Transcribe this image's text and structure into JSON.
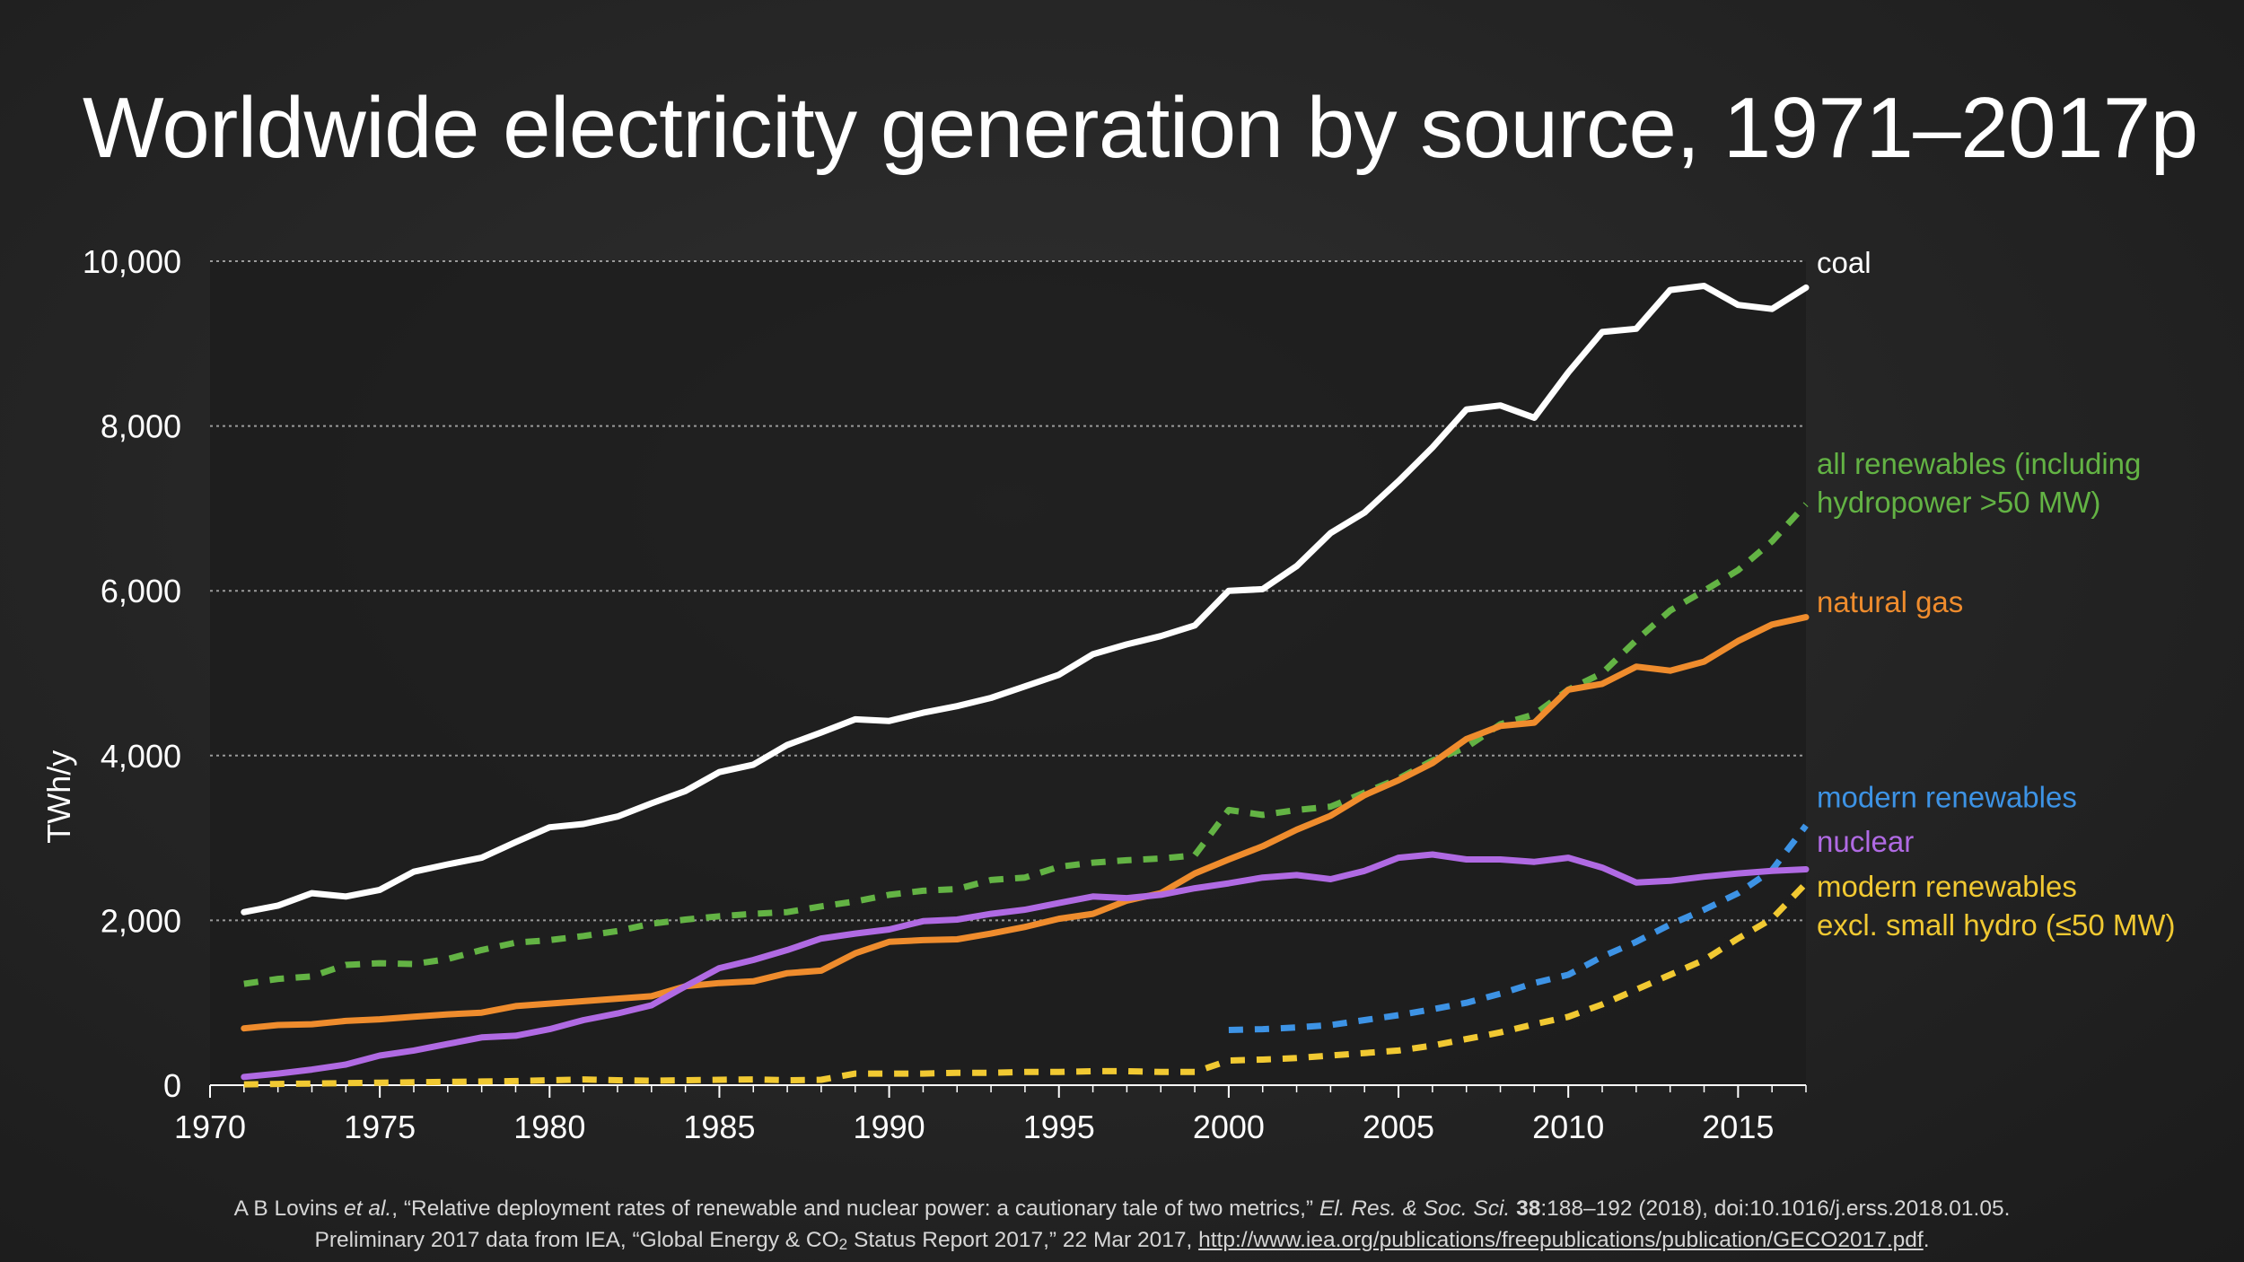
{
  "title": "Worldwide electricity generation by source, 1971–2017p",
  "colors": {
    "coal": "#ffffff",
    "all_renewables": "#63b344",
    "natural_gas": "#ef8c2d",
    "modern_renewables": "#3d93e5",
    "nuclear": "#b06ae3",
    "modern_excl_small_hydro": "#f1c932"
  },
  "chart_data": {
    "type": "line",
    "title": "Worldwide electricity generation by source, 1971–2017p",
    "xlabel": "",
    "ylabel": "TWh/y",
    "xlim": [
      1970,
      2017
    ],
    "ylim": [
      0,
      10000
    ],
    "grid": true,
    "x_ticks": [
      1970,
      1975,
      1980,
      1985,
      1990,
      1995,
      2000,
      2005,
      2010,
      2015
    ],
    "x_tick_labels": [
      "1970",
      "1975",
      "1980",
      "1985",
      "1990",
      "1995",
      "2000",
      "2005",
      "2010",
      "2015"
    ],
    "y_ticks": [
      0,
      2000,
      4000,
      6000,
      8000,
      10000
    ],
    "y_tick_labels": [
      "0",
      "2,000",
      "4,000",
      "6,000",
      "8,000",
      "10,000"
    ],
    "series": [
      {
        "key": "coal",
        "name": "coal",
        "dashed": false,
        "color": "#ffffff",
        "label_lines": [
          "coal"
        ],
        "label_y": 9860,
        "x": [
          1971,
          1972,
          1973,
          1974,
          1975,
          1976,
          1977,
          1978,
          1979,
          1980,
          1981,
          1982,
          1983,
          1984,
          1985,
          1986,
          1987,
          1988,
          1989,
          1990,
          1991,
          1992,
          1993,
          1994,
          1995,
          1996,
          1997,
          1998,
          1999,
          2000,
          2001,
          2002,
          2003,
          2004,
          2005,
          2006,
          2007,
          2008,
          2009,
          2010,
          2011,
          2012,
          2013,
          2014,
          2015,
          2016,
          2017
        ],
        "values": [
          2100,
          2180,
          2330,
          2290,
          2370,
          2590,
          2680,
          2760,
          2950,
          3130,
          3170,
          3260,
          3420,
          3570,
          3800,
          3890,
          4130,
          4280,
          4440,
          4420,
          4520,
          4600,
          4700,
          4840,
          4980,
          5230,
          5350,
          5450,
          5580,
          6000,
          6020,
          6300,
          6700,
          6950,
          7330,
          7740,
          8200,
          8250,
          8100,
          8650,
          9140,
          9180,
          9650,
          9700,
          9470,
          9420,
          9680
        ]
      },
      {
        "key": "all_renewables",
        "name": "all renewables (including hydropower >50 MW)",
        "dashed": true,
        "color": "#63b344",
        "label_lines": [
          "all renewables (including",
          "hydropower >50 MW)"
        ],
        "label_y": 7420,
        "x": [
          1971,
          1972,
          1973,
          1974,
          1975,
          1976,
          1977,
          1978,
          1979,
          1980,
          1981,
          1982,
          1983,
          1984,
          1985,
          1986,
          1987,
          1988,
          1989,
          1990,
          1991,
          1992,
          1993,
          1994,
          1995,
          1996,
          1997,
          1998,
          1999,
          2000,
          2001,
          2002,
          2003,
          2004,
          2005,
          2006,
          2007,
          2008,
          2009,
          2010,
          2011,
          2012,
          2013,
          2014,
          2015,
          2016,
          2017
        ],
        "values": [
          1230,
          1290,
          1320,
          1460,
          1480,
          1470,
          1530,
          1640,
          1730,
          1760,
          1810,
          1870,
          1960,
          2010,
          2050,
          2080,
          2100,
          2170,
          2230,
          2310,
          2360,
          2380,
          2490,
          2520,
          2650,
          2700,
          2730,
          2750,
          2790,
          3340,
          3280,
          3340,
          3380,
          3550,
          3720,
          3940,
          4100,
          4380,
          4500,
          4800,
          5000,
          5400,
          5760,
          6000,
          6250,
          6600,
          7050
        ]
      },
      {
        "key": "natural_gas",
        "name": "natural gas",
        "dashed": false,
        "color": "#ef8c2d",
        "label_lines": [
          "natural gas"
        ],
        "label_y": 5740,
        "x": [
          1971,
          1972,
          1973,
          1974,
          1975,
          1976,
          1977,
          1978,
          1979,
          1980,
          1981,
          1982,
          1983,
          1984,
          1985,
          1986,
          1987,
          1988,
          1989,
          1990,
          1991,
          1992,
          1993,
          1994,
          1995,
          1996,
          1997,
          1998,
          1999,
          2000,
          2001,
          2002,
          2003,
          2004,
          2005,
          2006,
          2007,
          2008,
          2009,
          2010,
          2011,
          2012,
          2013,
          2014,
          2015,
          2016,
          2017
        ],
        "values": [
          690,
          730,
          740,
          780,
          800,
          830,
          860,
          880,
          960,
          990,
          1020,
          1050,
          1080,
          1200,
          1240,
          1260,
          1360,
          1390,
          1600,
          1740,
          1760,
          1770,
          1840,
          1920,
          2020,
          2080,
          2240,
          2330,
          2570,
          2740,
          2900,
          3100,
          3270,
          3520,
          3700,
          3910,
          4200,
          4360,
          4400,
          4800,
          4870,
          5080,
          5030,
          5140,
          5390,
          5590,
          5680
        ]
      },
      {
        "key": "modern_renewables",
        "name": "modern renewables",
        "dashed": true,
        "color": "#3d93e5",
        "label_lines": [
          "modern renewables"
        ],
        "label_y": 3370,
        "x": [
          2000,
          2001,
          2002,
          2003,
          2004,
          2005,
          2006,
          2007,
          2008,
          2009,
          2010,
          2011,
          2012,
          2013,
          2014,
          2015,
          2016,
          2017
        ],
        "values": [
          670,
          680,
          700,
          730,
          790,
          850,
          920,
          1000,
          1110,
          1240,
          1340,
          1560,
          1740,
          1950,
          2130,
          2330,
          2610,
          3150
        ]
      },
      {
        "key": "nuclear",
        "name": "nuclear",
        "dashed": false,
        "color": "#b06ae3",
        "label_lines": [
          "nuclear"
        ],
        "label_y": 2830,
        "x": [
          1971,
          1972,
          1973,
          1974,
          1975,
          1976,
          1977,
          1978,
          1979,
          1980,
          1981,
          1982,
          1983,
          1984,
          1985,
          1986,
          1987,
          1988,
          1989,
          1990,
          1991,
          1992,
          1993,
          1994,
          1995,
          1996,
          1997,
          1998,
          1999,
          2000,
          2001,
          2002,
          2003,
          2004,
          2005,
          2006,
          2007,
          2008,
          2009,
          2010,
          2011,
          2012,
          2013,
          2014,
          2015,
          2016,
          2017
        ],
        "values": [
          100,
          140,
          190,
          250,
          360,
          420,
          500,
          580,
          600,
          680,
          790,
          870,
          970,
          1200,
          1420,
          1520,
          1640,
          1780,
          1840,
          1890,
          1990,
          2010,
          2080,
          2130,
          2210,
          2290,
          2270,
          2310,
          2390,
          2450,
          2520,
          2550,
          2500,
          2600,
          2760,
          2800,
          2740,
          2740,
          2710,
          2760,
          2640,
          2460,
          2480,
          2530,
          2570,
          2600,
          2620
        ]
      },
      {
        "key": "modern_excl_small_hydro",
        "name": "modern renewables excl. small hydro (≤50 MW)",
        "dashed": true,
        "color": "#f1c932",
        "label_lines": [
          "modern renewables",
          "excl. small hydro (≤50 MW)"
        ],
        "label_y": 2290,
        "x": [
          1971,
          1972,
          1973,
          1974,
          1975,
          1976,
          1977,
          1978,
          1979,
          1980,
          1981,
          1982,
          1983,
          1984,
          1985,
          1986,
          1987,
          1988,
          1989,
          1990,
          1991,
          1992,
          1993,
          1994,
          1995,
          1996,
          1997,
          1998,
          1999,
          2000,
          2001,
          2002,
          2003,
          2004,
          2005,
          2006,
          2007,
          2008,
          2009,
          2010,
          2011,
          2012,
          2013,
          2014,
          2015,
          2016,
          2017
        ],
        "values": [
          10,
          15,
          20,
          25,
          30,
          35,
          40,
          45,
          50,
          60,
          70,
          60,
          55,
          60,
          65,
          70,
          60,
          65,
          140,
          140,
          140,
          150,
          150,
          160,
          160,
          170,
          170,
          160,
          160,
          300,
          310,
          330,
          360,
          390,
          420,
          480,
          560,
          640,
          740,
          830,
          980,
          1160,
          1340,
          1520,
          1780,
          2020,
          2450
        ]
      }
    ]
  },
  "footer": {
    "line1_prefix": "A B Lovins ",
    "line1_etal": "et al.",
    "line1_middle": ", “Relative deployment rates of renewable and nuclear power: a cautionary tale of two metrics,” ",
    "line1_journal": "El. Res. & Soc. Sci.",
    "line1_space": " ",
    "line1_volume": "38",
    "line1_suffix": ":188–192 (2018), doi:10.1016/j.erss.2018.01.05.",
    "line2_prefix": "Preliminary 2017 data from IEA, “Global Energy & CO",
    "line2_sub": "2",
    "line2_middle": " Status Report 2017,” 22 Mar 2017, ",
    "line2_link": "http://www.iea.org/publications/freepublications/publication/GECO2017.pdf",
    "line2_suffix": "."
  }
}
